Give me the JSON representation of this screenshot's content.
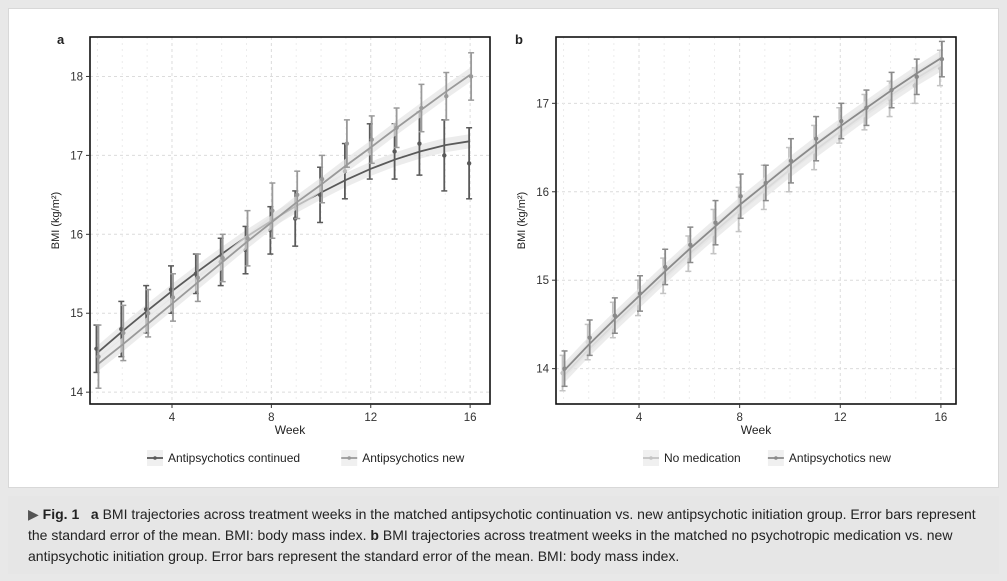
{
  "chart_data": [
    {
      "panel_label": "a",
      "type": "line",
      "xlabel": "Week",
      "ylabel": "BMI (kg/m²)",
      "xlim": [
        0.7,
        16.8
      ],
      "ylim": [
        13.85,
        18.5
      ],
      "xticks": [
        4,
        8,
        12,
        16
      ],
      "yticks": [
        14,
        15,
        16,
        17,
        18
      ],
      "grid": true,
      "legend_position": "bottom",
      "series": [
        {
          "name": "Antipsychotics continued",
          "color": "#5a5a5a",
          "x": [
            1,
            2,
            3,
            4,
            5,
            6,
            7,
            8,
            9,
            10,
            11,
            12,
            13,
            14,
            15,
            16
          ],
          "y": [
            14.55,
            14.8,
            15.05,
            15.3,
            15.5,
            15.65,
            15.8,
            16.05,
            16.2,
            16.5,
            16.8,
            17.05,
            17.05,
            17.15,
            17.0,
            16.9
          ],
          "err": [
            0.3,
            0.35,
            0.3,
            0.3,
            0.25,
            0.3,
            0.3,
            0.3,
            0.35,
            0.35,
            0.35,
            0.35,
            0.35,
            0.4,
            0.45,
            0.45
          ],
          "fit": [
            14.5,
            14.77,
            15.03,
            15.28,
            15.52,
            15.75,
            15.97,
            16.17,
            16.36,
            16.53,
            16.69,
            16.83,
            16.95,
            17.05,
            17.13,
            17.18
          ]
        },
        {
          "name": "Antipsychotics new",
          "color": "#9a9a9a",
          "x": [
            1,
            2,
            3,
            4,
            5,
            6,
            7,
            8,
            9,
            10,
            11,
            12,
            13,
            14,
            15,
            16
          ],
          "y": [
            14.45,
            14.75,
            15.0,
            15.2,
            15.45,
            15.7,
            15.95,
            16.3,
            16.5,
            16.7,
            17.15,
            17.2,
            17.35,
            17.6,
            17.75,
            18.0
          ],
          "err": [
            0.4,
            0.35,
            0.3,
            0.3,
            0.3,
            0.3,
            0.35,
            0.35,
            0.3,
            0.3,
            0.3,
            0.3,
            0.25,
            0.3,
            0.3,
            0.3
          ],
          "fit": [
            14.35,
            14.6,
            14.86,
            15.12,
            15.38,
            15.64,
            15.9,
            16.15,
            16.4,
            16.63,
            16.87,
            17.1,
            17.34,
            17.57,
            17.8,
            18.02
          ]
        }
      ]
    },
    {
      "panel_label": "b",
      "type": "line",
      "xlabel": "Week",
      "ylabel": "BMI (kg/m²)",
      "xlim": [
        0.7,
        16.6
      ],
      "ylim": [
        13.6,
        17.75
      ],
      "xticks": [
        4,
        8,
        12,
        16
      ],
      "yticks": [
        14,
        15,
        16,
        17
      ],
      "grid": true,
      "legend_position": "bottom",
      "series": [
        {
          "name": "No medication",
          "color": "#c4c4c4",
          "x": [
            1,
            2,
            3,
            4,
            5,
            6,
            7,
            8,
            9,
            10,
            11,
            12,
            13,
            14,
            15,
            16
          ],
          "y": [
            13.95,
            14.3,
            14.55,
            14.8,
            15.05,
            15.3,
            15.55,
            15.8,
            16.05,
            16.25,
            16.5,
            16.75,
            16.9,
            17.05,
            17.2,
            17.4
          ],
          "err": [
            0.2,
            0.2,
            0.2,
            0.2,
            0.2,
            0.2,
            0.25,
            0.25,
            0.25,
            0.25,
            0.25,
            0.2,
            0.2,
            0.2,
            0.2,
            0.2
          ],
          "fit": [
            13.92,
            14.22,
            14.5,
            14.77,
            15.04,
            15.3,
            15.55,
            15.79,
            16.02,
            16.25,
            16.47,
            16.68,
            16.89,
            17.09,
            17.28,
            17.45
          ]
        },
        {
          "name": "Antipsychotics new",
          "color": "#8a8a8a",
          "x": [
            1,
            2,
            3,
            4,
            5,
            6,
            7,
            8,
            9,
            10,
            11,
            12,
            13,
            14,
            15,
            16
          ],
          "y": [
            14.0,
            14.35,
            14.6,
            14.85,
            15.15,
            15.4,
            15.65,
            15.95,
            16.1,
            16.35,
            16.6,
            16.8,
            16.95,
            17.15,
            17.3,
            17.5
          ],
          "err": [
            0.2,
            0.2,
            0.2,
            0.2,
            0.2,
            0.2,
            0.25,
            0.25,
            0.2,
            0.25,
            0.25,
            0.2,
            0.2,
            0.2,
            0.2,
            0.2
          ],
          "fit": [
            13.97,
            14.27,
            14.55,
            14.82,
            15.09,
            15.35,
            15.6,
            15.85,
            16.08,
            16.31,
            16.53,
            16.74,
            16.94,
            17.14,
            17.33,
            17.51
          ]
        }
      ]
    }
  ],
  "caption": {
    "fig_label": "Fig. 1",
    "part_a_label": "a",
    "part_a_text": "BMI trajectories across treatment weeks in the matched antipsychotic continuation vs. new antipsychotic initiation group. Error bars represent the standard error of the mean. BMI: body mass index.",
    "part_b_label": "b",
    "part_b_text": "BMI trajectories across treatment weeks in the matched no psychotropic medica­tion vs. new antipsychotic initiation group. Error bars represent the standard error of the mean. BMI: body mass index."
  }
}
